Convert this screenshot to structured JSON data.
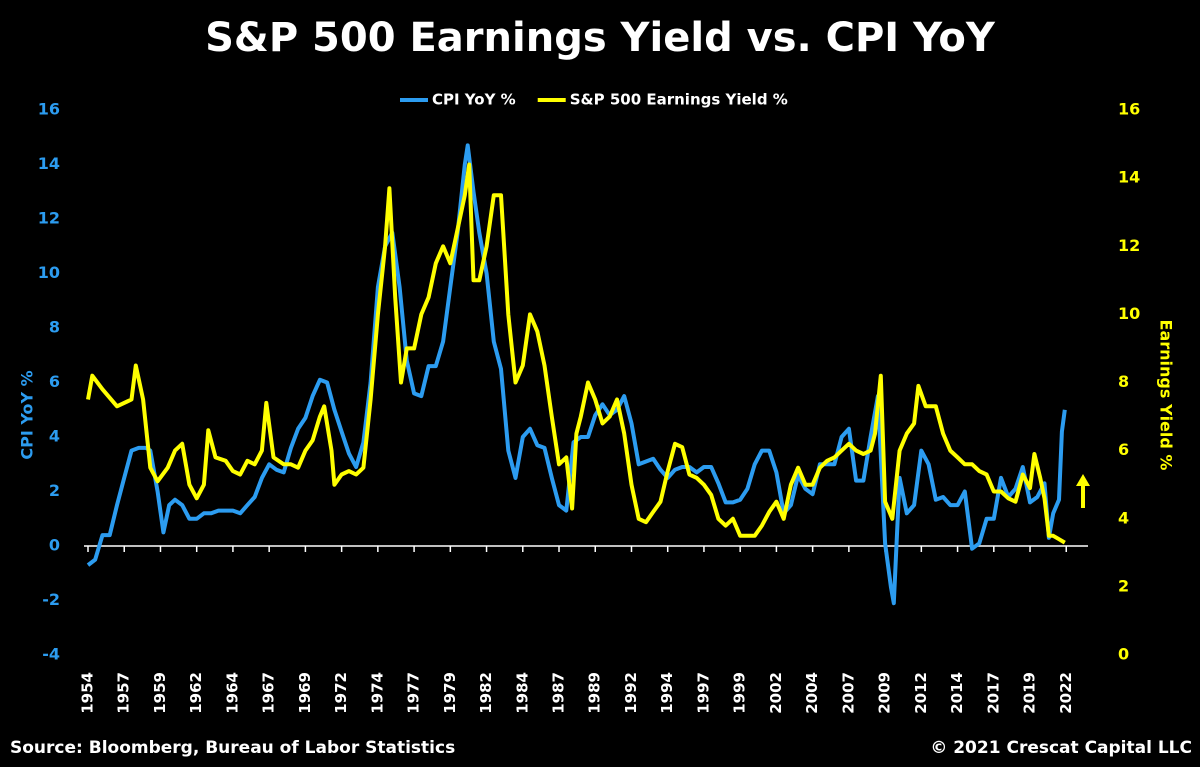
{
  "chart_data": {
    "type": "line",
    "title": "S&P 500 Earnings Yield vs. CPI YoY",
    "y_label": "CPI YoY %",
    "y2_label": "Earnings Yield %",
    "source": "Source: Bloomberg, Bureau of Labor Statistics",
    "credit": "© 2021 Crescat Capital LLC",
    "xlim": [
      1954,
      2023
    ],
    "xticks": [
      1954,
      {
        "value": 1956.5,
        "label": "1957"
      },
      1959,
      {
        "value": 1961.5,
        "label": "1962"
      },
      1964,
      {
        "value": 1966.5,
        "label": "1967"
      },
      1969,
      {
        "value": 1971.5,
        "label": "1972"
      },
      1974,
      {
        "value": 1976.5,
        "label": "1977"
      },
      1979,
      {
        "value": 1981.5,
        "label": "1982"
      },
      1984,
      {
        "value": 1986.5,
        "label": "1987"
      },
      1989,
      {
        "value": 1991.5,
        "label": "1992"
      },
      1994,
      {
        "value": 1996.5,
        "label": "1997"
      },
      1999,
      {
        "value": 2001.5,
        "label": "2002"
      },
      2004,
      {
        "value": 2006.5,
        "label": "2007"
      },
      2009,
      {
        "value": 2011.5,
        "label": "2012"
      },
      2014,
      {
        "value": 2016.5,
        "label": "2017"
      },
      2019,
      {
        "value": 2021.5,
        "label": "2022"
      }
    ],
    "ylim": [
      -4,
      16
    ],
    "yticks": [
      -4,
      -2,
      0,
      2,
      4,
      6,
      8,
      10,
      12,
      14,
      16
    ],
    "y2lim": [
      0,
      16
    ],
    "y2ticks": [
      0,
      2,
      4,
      6,
      8,
      10,
      12,
      14,
      16
    ],
    "y_color": "#2c9cf0",
    "y2_color": "#ffff00",
    "series": [
      {
        "name": "CPI YoY %",
        "color": "#2c9cf0",
        "axis": "y",
        "x": [
          1954.0,
          1954.5,
          1955,
          1955.5,
          1956,
          1956.5,
          1957,
          1957.5,
          1958,
          1958.3,
          1958.8,
          1959.2,
          1959.6,
          1960,
          1960.5,
          1961,
          1961.5,
          1962,
          1962.5,
          1963,
          1963.5,
          1964,
          1964.5,
          1965,
          1965.5,
          1966,
          1966.5,
          1967,
          1967.5,
          1968,
          1968.5,
          1969,
          1969.5,
          1970,
          1970.5,
          1971,
          1971.5,
          1972,
          1972.5,
          1973,
          1973.5,
          1974,
          1974.5,
          1975,
          1975.5,
          1976,
          1976.5,
          1977,
          1977.5,
          1978,
          1978.5,
          1979,
          1979.5,
          1980,
          1980.2,
          1980.6,
          1981,
          1981.5,
          1982,
          1982.5,
          1983,
          1983.5,
          1984,
          1984.5,
          1985,
          1985.5,
          1986,
          1986.5,
          1987,
          1987.5,
          1988,
          1988.5,
          1989,
          1989.5,
          1990,
          1990.5,
          1991,
          1991.5,
          1992,
          1992.5,
          1993,
          1993.5,
          1994,
          1994.5,
          1995,
          1995.5,
          1996,
          1996.5,
          1997,
          1997.5,
          1998,
          1998.5,
          1999,
          1999.5,
          2000,
          2000.5,
          2001,
          2001.5,
          2002,
          2002.5,
          2003,
          2003.5,
          2004,
          2004.5,
          2005,
          2005.5,
          2006,
          2006.5,
          2007,
          2007.5,
          2008,
          2008.5,
          2009,
          2009.4,
          2009.6,
          2010,
          2010.5,
          2011,
          2011.5,
          2012,
          2012.5,
          2013,
          2013.5,
          2014,
          2014.5,
          2015,
          2015.5,
          2016,
          2016.5,
          2017,
          2017.5,
          2018,
          2018.5,
          2019,
          2019.5,
          2020,
          2020.3,
          2020.6,
          2021,
          2021.2,
          2021.4
        ],
        "values": [
          -0.7,
          -0.5,
          0.4,
          0.4,
          1.5,
          2.5,
          3.5,
          3.6,
          3.6,
          3.5,
          2.0,
          0.5,
          1.5,
          1.7,
          1.5,
          1.0,
          1.0,
          1.2,
          1.2,
          1.3,
          1.3,
          1.3,
          1.2,
          1.5,
          1.8,
          2.5,
          3.0,
          2.8,
          2.7,
          3.6,
          4.3,
          4.7,
          5.5,
          6.1,
          6.0,
          5.0,
          4.2,
          3.4,
          2.9,
          3.8,
          6.0,
          9.5,
          11.0,
          11.5,
          9.5,
          6.8,
          5.6,
          5.5,
          6.6,
          6.6,
          7.5,
          9.5,
          11.5,
          14.0,
          14.7,
          13.0,
          11.5,
          10.0,
          7.5,
          6.5,
          3.5,
          2.5,
          4.0,
          4.3,
          3.7,
          3.6,
          2.5,
          1.5,
          1.3,
          3.8,
          4.0,
          4.0,
          4.8,
          5.2,
          4.8,
          5.0,
          5.5,
          4.5,
          3.0,
          3.1,
          3.2,
          2.8,
          2.5,
          2.8,
          2.9,
          2.9,
          2.7,
          2.9,
          2.9,
          2.3,
          1.6,
          1.6,
          1.7,
          2.1,
          3.0,
          3.5,
          3.5,
          2.7,
          1.2,
          1.5,
          2.6,
          2.1,
          1.9,
          3.0,
          3.0,
          3.0,
          4.0,
          4.3,
          2.4,
          2.4,
          4.0,
          5.5,
          0.1,
          -1.5,
          -2.1,
          2.5,
          1.2,
          1.5,
          3.5,
          3.0,
          1.7,
          1.8,
          1.5,
          1.5,
          2.0,
          -0.1,
          0.1,
          1.0,
          1.0,
          2.5,
          1.8,
          2.1,
          2.9,
          1.6,
          1.8,
          2.3,
          0.3,
          1.2,
          1.7,
          4.2,
          5.0
        ]
      },
      {
        "name": "S&P 500 Earnings Yield %",
        "color": "#ffff00",
        "axis": "y2",
        "x": [
          1954,
          1954.3,
          1955,
          1956,
          1957,
          1957.3,
          1957.8,
          1958.3,
          1958.8,
          1959.5,
          1960,
          1960.5,
          1961,
          1961.5,
          1962,
          1962.3,
          1962.8,
          1963.5,
          1964,
          1964.5,
          1965,
          1965.5,
          1966,
          1966.3,
          1966.8,
          1967.5,
          1968,
          1968.5,
          1969,
          1969.5,
          1970,
          1970.3,
          1970.8,
          1971,
          1971.5,
          1972,
          1972.5,
          1973,
          1973.5,
          1974,
          1974.5,
          1974.8,
          1975.2,
          1975.6,
          1976,
          1976.5,
          1977,
          1977.5,
          1978,
          1978.5,
          1979,
          1979.5,
          1980,
          1980.3,
          1980.6,
          1981,
          1981.5,
          1982,
          1982.5,
          1983,
          1983.5,
          1984,
          1984.5,
          1985,
          1985.5,
          1986,
          1986.5,
          1987,
          1987.4,
          1987.7,
          1988,
          1988.5,
          1989,
          1989.5,
          1990,
          1990.5,
          1991,
          1991.5,
          1992,
          1992.5,
          1993,
          1993.5,
          1994,
          1994.5,
          1995,
          1995.5,
          1996,
          1996.5,
          1997,
          1997.5,
          1998,
          1998.5,
          1999,
          1999.5,
          2000,
          2000.5,
          2001,
          2001.5,
          2002,
          2002.5,
          2003,
          2003.5,
          2004,
          2004.5,
          2005,
          2005.5,
          2006,
          2006.5,
          2007,
          2007.5,
          2008,
          2008.3,
          2008.7,
          2009,
          2009.5,
          2010,
          2010.5,
          2011,
          2011.3,
          2011.8,
          2012.5,
          2013,
          2013.5,
          2014,
          2014.5,
          2015,
          2015.5,
          2016,
          2016.5,
          2017,
          2017.5,
          2018,
          2018.5,
          2019,
          2019.3,
          2019.7,
          2020,
          2020.3,
          2020.6,
          2021,
          2021.4
        ],
        "values": [
          7.5,
          8.2,
          7.8,
          7.3,
          7.5,
          8.5,
          7.5,
          5.5,
          5.1,
          5.5,
          6.0,
          6.2,
          5.0,
          4.6,
          5.0,
          6.6,
          5.8,
          5.7,
          5.4,
          5.3,
          5.7,
          5.6,
          6.0,
          7.4,
          5.8,
          5.6,
          5.6,
          5.5,
          6.0,
          6.3,
          7.0,
          7.3,
          6.0,
          5.0,
          5.3,
          5.4,
          5.3,
          5.5,
          7.5,
          10,
          12,
          13.7,
          10.5,
          8.0,
          9.0,
          9.0,
          10.0,
          10.5,
          11.5,
          12.0,
          11.5,
          12.5,
          13.5,
          14.4,
          11.0,
          11.0,
          12.0,
          13.5,
          13.5,
          10.0,
          8.0,
          8.5,
          10.0,
          9.5,
          8.5,
          7.0,
          5.6,
          5.8,
          4.3,
          6.5,
          7.0,
          8.0,
          7.5,
          6.8,
          7.0,
          7.5,
          6.5,
          5.0,
          4.0,
          3.9,
          4.2,
          4.5,
          5.4,
          6.2,
          6.1,
          5.3,
          5.2,
          5.0,
          4.7,
          4.0,
          3.8,
          4.0,
          3.5,
          3.5,
          3.5,
          3.8,
          4.2,
          4.5,
          4.0,
          5.0,
          5.5,
          5.0,
          5.0,
          5.5,
          5.7,
          5.8,
          6.0,
          6.2,
          6.0,
          5.9,
          6.0,
          6.5,
          8.2,
          4.5,
          4.0,
          6.0,
          6.5,
          6.8,
          7.9,
          7.3,
          7.3,
          6.5,
          6.0,
          5.8,
          5.6,
          5.6,
          5.4,
          5.3,
          4.8,
          4.8,
          4.6,
          4.5,
          5.3,
          4.9,
          5.9,
          5.2,
          4.6,
          3.5,
          3.5,
          3.4,
          3.3
        ]
      }
    ]
  }
}
